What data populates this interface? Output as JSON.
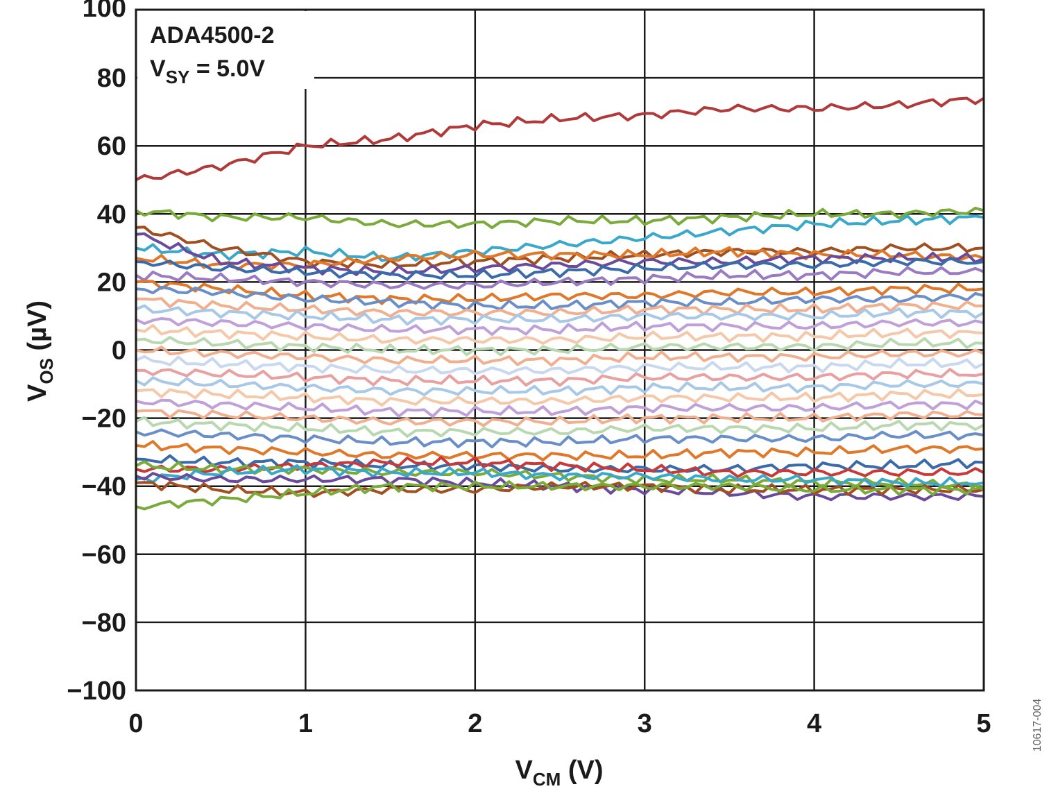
{
  "chart_data": {
    "type": "line",
    "annotation": {
      "part": "ADA4500-2",
      "supply_main": "V",
      "supply_sub": "SY",
      "supply_rest": " = 5.0V"
    },
    "xlabel": {
      "main": "V",
      "sub": "CM",
      "rest": " (V)"
    },
    "ylabel": {
      "main": "V",
      "sub": "OS",
      "rest": " (µV)"
    },
    "xlim": [
      0,
      5
    ],
    "ylim": [
      -100,
      100
    ],
    "x_ticks": [
      0,
      1,
      2,
      3,
      4,
      5
    ],
    "y_ticks": [
      -100,
      -80,
      -60,
      -40,
      -20,
      0,
      20,
      40,
      60,
      80,
      100
    ],
    "x_tick_labels": [
      "0",
      "1",
      "2",
      "3",
      "4",
      "5"
    ],
    "y_tick_labels": [
      "−100",
      "−80",
      "−60",
      "−40",
      "−20",
      "0",
      "20",
      "40",
      "60",
      "80",
      "100"
    ],
    "grid": true,
    "legend": "none",
    "figure_id": "10617-004",
    "x": [
      0,
      0.5,
      1,
      1.5,
      2,
      2.5,
      3,
      3.5,
      4,
      4.5,
      5
    ],
    "series": [
      {
        "color": "#b03a3a",
        "values": [
          50,
          54,
          60,
          62,
          66,
          68,
          69,
          71,
          71,
          72,
          74
        ]
      },
      {
        "color": "#7aab3a",
        "values": [
          41,
          39,
          39,
          37,
          37,
          38,
          38,
          39,
          40,
          40,
          41
        ]
      },
      {
        "color": "#3aa8c8",
        "values": [
          30,
          28,
          29,
          27,
          29,
          31,
          33,
          35,
          37,
          38,
          39
        ]
      },
      {
        "color": "#a05020",
        "values": [
          36,
          30,
          26,
          25,
          26,
          27,
          28,
          29,
          29,
          30,
          30
        ]
      },
      {
        "color": "#e0782a",
        "values": [
          27,
          25,
          25,
          27,
          28,
          28,
          28,
          29,
          28,
          28,
          27
        ]
      },
      {
        "color": "#6a4a9a",
        "values": [
          34,
          26,
          24,
          23,
          24,
          25,
          26,
          26,
          27,
          27,
          27
        ]
      },
      {
        "color": "#3a6aa8",
        "values": [
          26,
          24,
          23,
          22,
          22,
          23,
          24,
          25,
          25,
          26,
          26
        ]
      },
      {
        "color": "#9a7ac0",
        "values": [
          22,
          21,
          20,
          19,
          19,
          20,
          21,
          22,
          22,
          23,
          23
        ]
      },
      {
        "color": "#e0782a",
        "values": [
          20,
          18,
          16,
          15,
          15,
          16,
          16,
          17,
          17,
          18,
          18
        ]
      },
      {
        "color": "#6a8fc8",
        "values": [
          18,
          17,
          15,
          14,
          13,
          13,
          14,
          14,
          15,
          15,
          16
        ]
      },
      {
        "color": "#f0b090",
        "values": [
          15,
          13,
          12,
          11,
          11,
          11,
          12,
          12,
          12,
          13,
          13
        ]
      },
      {
        "color": "#a8c8e8",
        "values": [
          12,
          11,
          10,
          9,
          9,
          9,
          10,
          10,
          10,
          11,
          11
        ]
      },
      {
        "color": "#c0a0d8",
        "values": [
          9,
          8,
          7,
          6,
          6,
          6,
          7,
          7,
          7,
          8,
          8
        ]
      },
      {
        "color": "#f4c8a8",
        "values": [
          6,
          5,
          4,
          3,
          3,
          3,
          4,
          4,
          4,
          5,
          5
        ]
      },
      {
        "color": "#b8d8b0",
        "values": [
          3,
          2,
          1,
          0,
          0,
          0,
          1,
          1,
          1,
          2,
          2
        ]
      },
      {
        "color": "#f0b090",
        "values": [
          0,
          -1,
          -2,
          -3,
          -3,
          -3,
          -2,
          -2,
          -2,
          -1,
          -1
        ]
      },
      {
        "color": "#c8d8f0",
        "values": [
          -3,
          -4,
          -5,
          -6,
          -6,
          -6,
          -5,
          -5,
          -5,
          -4,
          -4
        ]
      },
      {
        "color": "#e8a0a0",
        "values": [
          -6,
          -7,
          -8,
          -9,
          -9,
          -9,
          -8,
          -8,
          -8,
          -7,
          -7
        ]
      },
      {
        "color": "#a8c8e8",
        "values": [
          -9,
          -10,
          -11,
          -12,
          -12,
          -12,
          -11,
          -11,
          -11,
          -10,
          -10
        ]
      },
      {
        "color": "#f4c8a8",
        "values": [
          -12,
          -13,
          -14,
          -15,
          -15,
          -15,
          -14,
          -14,
          -14,
          -13,
          -13
        ]
      },
      {
        "color": "#c0a0d8",
        "values": [
          -15,
          -16,
          -17,
          -18,
          -18,
          -18,
          -17,
          -17,
          -17,
          -16,
          -16
        ]
      },
      {
        "color": "#f0b090",
        "values": [
          -18,
          -19,
          -20,
          -21,
          -21,
          -21,
          -20,
          -20,
          -20,
          -19,
          -19
        ]
      },
      {
        "color": "#b8d8b0",
        "values": [
          -21,
          -22,
          -23,
          -24,
          -24,
          -24,
          -23,
          -23,
          -23,
          -22,
          -22
        ]
      },
      {
        "color": "#6a8fc8",
        "values": [
          -24,
          -25,
          -26,
          -27,
          -27,
          -27,
          -26,
          -26,
          -26,
          -25,
          -25
        ]
      },
      {
        "color": "#e0782a",
        "values": [
          -28,
          -29,
          -30,
          -31,
          -31,
          -31,
          -31,
          -30,
          -30,
          -29,
          -29
        ]
      },
      {
        "color": "#3a6aa8",
        "values": [
          -32,
          -33,
          -33,
          -34,
          -34,
          -35,
          -35,
          -35,
          -34,
          -34,
          -33
        ]
      },
      {
        "color": "#c83a3a",
        "values": [
          -35,
          -35,
          -34,
          -33,
          -33,
          -34,
          -35,
          -36,
          -36,
          -36,
          -36
        ]
      },
      {
        "color": "#7aab3a",
        "values": [
          -34,
          -35,
          -35,
          -36,
          -36,
          -37,
          -38,
          -38,
          -39,
          -39,
          -40
        ]
      },
      {
        "color": "#3aa8c8",
        "values": [
          -38,
          -36,
          -35,
          -36,
          -36,
          -37,
          -37,
          -38,
          -38,
          -39,
          -39
        ]
      },
      {
        "color": "#6a4a9a",
        "values": [
          -37,
          -38,
          -38,
          -38,
          -39,
          -40,
          -41,
          -42,
          -43,
          -43,
          -43
        ]
      },
      {
        "color": "#a05020",
        "values": [
          -39,
          -41,
          -42,
          -41,
          -41,
          -40,
          -40,
          -41,
          -41,
          -41,
          -41
        ]
      },
      {
        "color": "#7aab3a",
        "values": [
          -46,
          -44,
          -42,
          -40,
          -40,
          -40,
          -40,
          -40,
          -41,
          -41,
          -41
        ]
      }
    ]
  }
}
